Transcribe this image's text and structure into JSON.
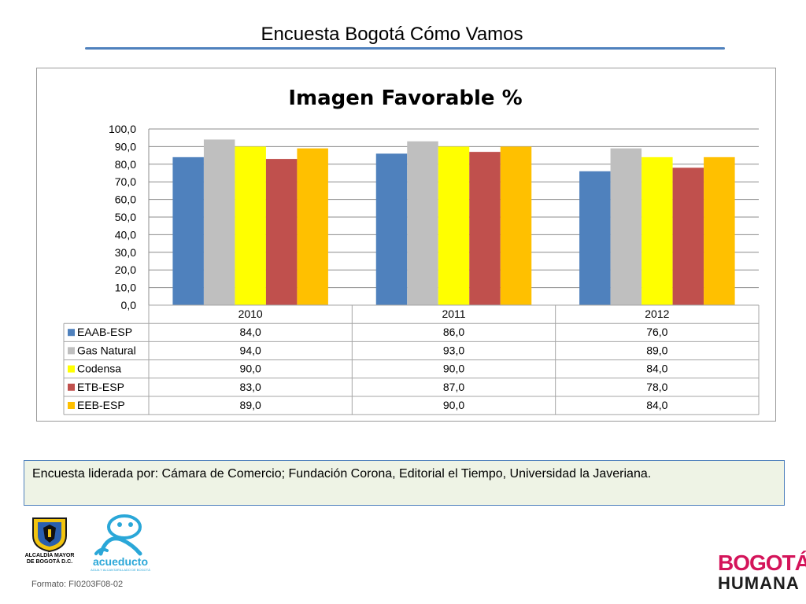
{
  "slide": {
    "title": "Encuesta Bogotá Cómo Vamos",
    "note": "Encuesta liderada por: Cámara de Comercio; Fundación Corona, Editorial el Tiempo, Universidad la Javeriana.",
    "format_code": "Formato: FI0203F08-02"
  },
  "logos": {
    "alcaldia_caption_line1": "ALCALDÍA MAYOR",
    "alcaldia_caption_line2": "DE BOGOTÁ D.C.",
    "acueducto_name": "acueducto",
    "acueducto_sub": "AGUA Y ALCANTARILLADO DE BOGOTÁ",
    "humana_line1": "BOGOTÁ",
    "humana_line2": "HUMANA"
  },
  "chart_data": {
    "type": "bar",
    "title": "Imagen Favorable %",
    "categories": [
      "2010",
      "2011",
      "2012"
    ],
    "ylim": [
      0,
      100
    ],
    "yticks": [
      "0,0",
      "10,0",
      "20,0",
      "30,0",
      "40,0",
      "50,0",
      "60,0",
      "70,0",
      "80,0",
      "90,0",
      "100,0"
    ],
    "grid": true,
    "legend": "data-table-below",
    "series": [
      {
        "name": "EAAB-ESP",
        "color": "#4f81bd",
        "values": [
          84,
          86,
          76
        ],
        "labels": [
          "84,0",
          "86,0",
          "76,0"
        ]
      },
      {
        "name": "Gas Natural",
        "color": "#bfbfbf",
        "values": [
          94,
          93,
          89
        ],
        "labels": [
          "94,0",
          "93,0",
          "89,0"
        ]
      },
      {
        "name": "Codensa",
        "color": "#ffff00",
        "values": [
          90,
          90,
          84
        ],
        "labels": [
          "90,0",
          "90,0",
          "84,0"
        ]
      },
      {
        "name": "ETB-ESP",
        "color": "#c0504d",
        "values": [
          83,
          87,
          78
        ],
        "labels": [
          "83,0",
          "87,0",
          "78,0"
        ]
      },
      {
        "name": "EEB-ESP",
        "color": "#ffc000",
        "values": [
          89,
          90,
          84
        ],
        "labels": [
          "89,0",
          "90,0",
          "84,0"
        ]
      }
    ]
  }
}
